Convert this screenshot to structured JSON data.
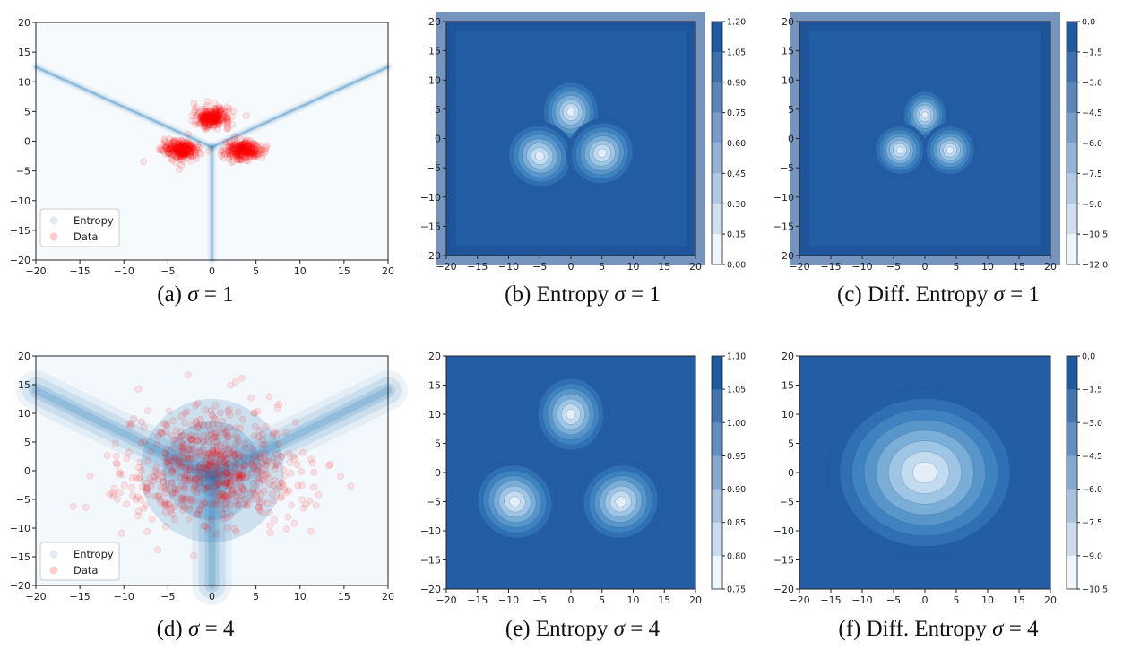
{
  "colors": {
    "entropy_blue": "#1f77b4",
    "data_red": "#ff0000",
    "contour_scale": [
      "#f7fbff",
      "#deebf7",
      "#c6dbef",
      "#9ecae1",
      "#6baed6",
      "#4292c6",
      "#2171b5",
      "#08519c",
      "#08306b"
    ]
  },
  "chart_data": [
    {
      "id": "a",
      "type": "scatter",
      "caption": {
        "label": "(a)",
        "symbol": "σ",
        "eq": "= 1"
      },
      "xlim": [
        -20,
        20
      ],
      "ylim": [
        -20,
        20
      ],
      "xticks": [
        "−20",
        "−15",
        "−10",
        "−5",
        "0",
        "5",
        "10",
        "15",
        "20"
      ],
      "yticks": [
        "20",
        "15",
        "10",
        "5",
        "0",
        "−5",
        "−10",
        "−15",
        "−20"
      ],
      "legend": {
        "position": "lower-left",
        "entries": [
          "Entropy",
          "Data"
        ]
      },
      "sigma": 1,
      "data_clusters": [
        {
          "x": 0,
          "y": 4
        },
        {
          "x": -3.5,
          "y": -1.5
        },
        {
          "x": 3.5,
          "y": -1.5
        }
      ],
      "entropy_ridges": [
        {
          "from": [
            0,
            -1
          ],
          "to": [
            -20,
            12.5
          ]
        },
        {
          "from": [
            0,
            -1
          ],
          "to": [
            20,
            12.5
          ]
        },
        {
          "from": [
            0,
            -1
          ],
          "to": [
            0,
            -20
          ]
        }
      ]
    },
    {
      "id": "b",
      "type": "heatmap",
      "caption": {
        "label": "(b) Entropy",
        "symbol": "σ",
        "eq": "= 1"
      },
      "xlim": [
        -20,
        20
      ],
      "ylim": [
        -20,
        20
      ],
      "xticks": [
        "−20",
        "−15",
        "−10",
        "−5",
        "0",
        "5",
        "10",
        "15",
        "20"
      ],
      "yticks": [
        "20",
        "15",
        "10",
        "5",
        "0",
        "−5",
        "−10",
        "−15",
        "−20"
      ],
      "colorbar": {
        "ticks": [
          "1.20",
          "1.05",
          "0.90",
          "0.75",
          "0.60",
          "0.45",
          "0.30",
          "0.15",
          "0.00"
        ],
        "range": [
          0.0,
          1.2
        ]
      },
      "sigma": 1,
      "peaks": [
        {
          "x": 0,
          "y": 4.5
        },
        {
          "x": -5,
          "y": -3
        },
        {
          "x": 5,
          "y": -2.5
        }
      ]
    },
    {
      "id": "c",
      "type": "heatmap",
      "caption": {
        "label": "(c) Diff. Entropy",
        "symbol": "σ",
        "eq": "= 1"
      },
      "xlim": [
        -20,
        20
      ],
      "ylim": [
        -20,
        20
      ],
      "xticks": [
        "−20",
        "−15",
        "−10",
        "−5",
        "0",
        "5",
        "10",
        "15",
        "20"
      ],
      "yticks": [
        "20",
        "15",
        "10",
        "5",
        "0",
        "−5",
        "−10",
        "−15",
        "−20"
      ],
      "colorbar": {
        "ticks": [
          "0.0",
          "−1.5",
          "−3.0",
          "−4.5",
          "−6.0",
          "−7.5",
          "−9.0",
          "−10.5",
          "−12.0"
        ],
        "range": [
          -12.0,
          0.0
        ]
      },
      "sigma": 1,
      "peaks": [
        {
          "x": 0,
          "y": 4
        },
        {
          "x": -4,
          "y": -2
        },
        {
          "x": 4,
          "y": -2
        }
      ]
    },
    {
      "id": "d",
      "type": "scatter",
      "caption": {
        "label": "(d)",
        "symbol": "σ",
        "eq": "= 4"
      },
      "xlim": [
        -20,
        20
      ],
      "ylim": [
        -20,
        20
      ],
      "xticks": [
        "−20",
        "−15",
        "−10",
        "−5",
        "0",
        "5",
        "10",
        "15",
        "20"
      ],
      "yticks": [
        "20",
        "15",
        "10",
        "5",
        "0",
        "−5",
        "−10",
        "−15",
        "−20"
      ],
      "legend": {
        "position": "lower-left",
        "entries": [
          "Entropy",
          "Data"
        ]
      },
      "sigma": 4,
      "data_clusters": [
        {
          "x": 0,
          "y": 4
        },
        {
          "x": -3.5,
          "y": -1.5
        },
        {
          "x": 3.5,
          "y": -1.5
        }
      ],
      "entropy_ridges": [
        {
          "from": [
            0,
            -1
          ],
          "to": [
            -20,
            14
          ]
        },
        {
          "from": [
            0,
            -1
          ],
          "to": [
            20,
            14
          ]
        },
        {
          "from": [
            0,
            -1
          ],
          "to": [
            0,
            -20
          ]
        }
      ]
    },
    {
      "id": "e",
      "type": "heatmap",
      "caption": {
        "label": "(e) Entropy",
        "symbol": "σ",
        "eq": "= 4"
      },
      "xlim": [
        -20,
        20
      ],
      "ylim": [
        -20,
        20
      ],
      "xticks": [
        "−20",
        "−15",
        "−10",
        "−5",
        "0",
        "5",
        "10",
        "15",
        "20"
      ],
      "yticks": [
        "20",
        "15",
        "10",
        "5",
        "0",
        "−5",
        "−10",
        "−15",
        "−20"
      ],
      "colorbar": {
        "ticks": [
          "1.10",
          "1.05",
          "1.00",
          "0.95",
          "0.90",
          "0.85",
          "0.80",
          "0.75"
        ],
        "range": [
          0.75,
          1.1
        ]
      },
      "sigma": 4,
      "peaks": [
        {
          "x": 0,
          "y": 10
        },
        {
          "x": -9,
          "y": -5
        },
        {
          "x": 8,
          "y": -5
        }
      ]
    },
    {
      "id": "f",
      "type": "heatmap",
      "caption": {
        "label": "(f) Diff. Entropy",
        "symbol": "σ",
        "eq": "= 4"
      },
      "xlim": [
        -20,
        20
      ],
      "ylim": [
        -20,
        20
      ],
      "xticks": [
        "−20",
        "−15",
        "−10",
        "−5",
        "0",
        "5",
        "10",
        "15",
        "20"
      ],
      "yticks": [
        "20",
        "15",
        "10",
        "5",
        "0",
        "−5",
        "−10",
        "−15",
        "−20"
      ],
      "colorbar": {
        "ticks": [
          "0.0",
          "−1.5",
          "−3.0",
          "−4.5",
          "−6.0",
          "−7.5",
          "−9.0",
          "−10.5"
        ],
        "range": [
          -10.5,
          0.0
        ]
      },
      "sigma": 4,
      "peaks": [
        {
          "x": 0,
          "y": 0
        }
      ]
    }
  ]
}
